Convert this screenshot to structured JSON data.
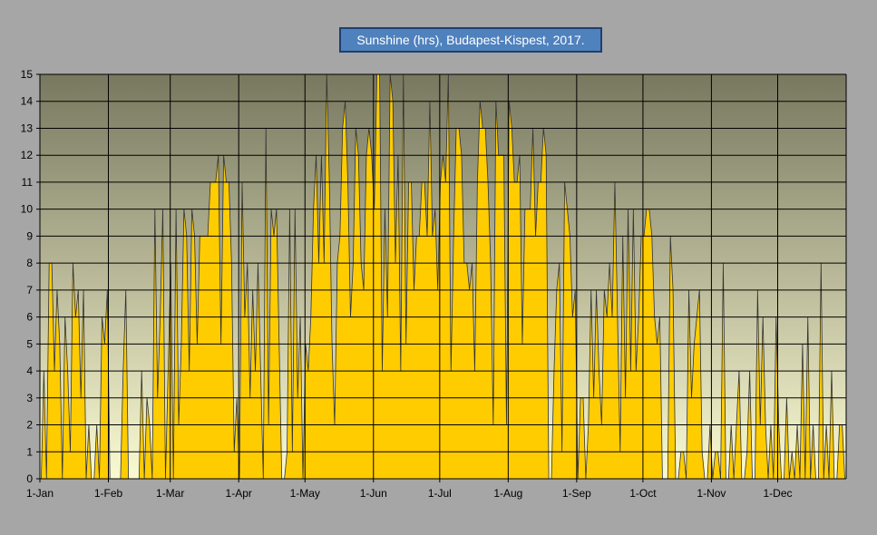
{
  "chart_data": {
    "type": "area",
    "title": "Sunshine (hrs), Budapest-Kispest, 2017.",
    "xlabel": "",
    "ylabel": "",
    "ylim": [
      0,
      15
    ],
    "yticks": [
      "0",
      "1",
      "2",
      "3",
      "4",
      "5",
      "6",
      "7",
      "8",
      "9",
      "10",
      "11",
      "12",
      "13",
      "14",
      "15"
    ],
    "x_tick_labels": [
      "1-Jan",
      "1-Feb",
      "1-Mar",
      "1-Apr",
      "1-May",
      "1-Jun",
      "1-Jul",
      "1-Aug",
      "1-Sep",
      "1-Oct",
      "1-Nov",
      "1-Dec"
    ],
    "x_tick_dates": [
      "2017-01-01",
      "2017-02-01",
      "2017-03-01",
      "2017-04-01",
      "2017-05-01",
      "2017-06-01",
      "2017-07-01",
      "2017-08-01",
      "2017-09-01",
      "2017-10-01",
      "2017-11-01",
      "2017-12-01"
    ],
    "x_range": [
      "2017-01-01",
      "2017-12-31"
    ],
    "grid": true,
    "legend": "none",
    "series_colors": {
      "fill": "#ffcc00",
      "line": "#333333"
    },
    "plot_background": {
      "top": "#787860",
      "bottom": "#fafad2"
    },
    "series": [
      {
        "values": [
          0,
          4,
          0,
          8,
          8,
          4,
          7,
          5,
          0,
          6,
          4,
          1,
          8,
          6,
          7,
          3,
          7,
          0,
          2,
          0,
          0,
          2,
          0,
          6,
          5,
          7,
          0,
          0,
          0,
          0,
          0,
          4,
          7,
          0,
          0,
          0,
          0,
          0,
          4,
          0,
          3,
          2,
          0,
          10,
          3,
          6,
          10,
          0,
          4,
          8,
          0,
          10,
          2,
          5,
          10,
          9,
          4,
          10,
          9,
          5,
          9,
          9,
          9,
          9,
          11,
          11,
          11,
          12,
          5,
          12,
          11,
          11,
          8,
          1,
          3,
          0,
          11,
          6,
          8,
          3,
          7,
          4,
          8,
          4,
          0,
          13,
          2,
          10,
          9,
          10,
          5,
          0,
          0,
          1,
          10,
          1,
          10,
          3,
          6,
          0,
          5,
          4,
          6,
          10,
          12,
          8,
          12,
          8,
          15,
          11,
          5,
          2,
          8,
          9,
          13,
          14,
          11,
          6,
          8,
          13,
          12,
          8,
          7,
          12,
          13,
          12,
          10,
          15,
          15,
          4,
          10,
          6,
          15,
          14,
          8,
          12,
          4,
          15,
          5,
          11,
          11,
          7,
          9,
          9,
          11,
          11,
          9,
          14,
          9,
          10,
          7,
          11,
          12,
          11,
          15,
          4,
          9,
          13,
          13,
          12,
          8,
          8,
          7,
          8,
          4,
          11,
          14,
          13,
          13,
          11,
          8,
          2,
          14,
          12,
          12,
          12,
          2,
          14,
          13,
          11,
          11,
          12,
          5,
          10,
          10,
          10,
          13,
          9,
          11,
          11,
          13,
          12,
          0,
          0,
          4,
          7,
          8,
          1,
          11,
          10,
          9,
          6,
          7,
          0,
          3,
          3,
          0,
          2,
          7,
          3,
          7,
          4,
          2,
          7,
          6,
          8,
          6,
          11,
          6,
          1,
          9,
          3,
          10,
          4,
          10,
          4,
          6,
          9,
          9,
          10,
          10,
          9,
          6,
          5,
          6,
          0,
          0,
          0,
          9,
          7,
          0,
          0,
          1,
          1,
          0,
          7,
          3,
          5,
          6,
          7,
          1,
          0,
          0,
          2,
          0,
          1,
          1,
          0,
          8,
          0,
          0,
          2,
          0,
          2,
          4,
          0,
          0,
          1,
          4,
          0,
          0,
          7,
          2,
          6,
          2,
          0,
          2,
          0,
          6,
          2,
          0,
          0,
          3,
          0,
          1,
          0,
          2,
          0,
          5,
          0,
          6,
          0,
          2,
          0,
          0,
          8,
          0,
          2,
          0,
          4,
          0,
          0,
          2,
          2,
          0
        ]
      }
    ]
  }
}
